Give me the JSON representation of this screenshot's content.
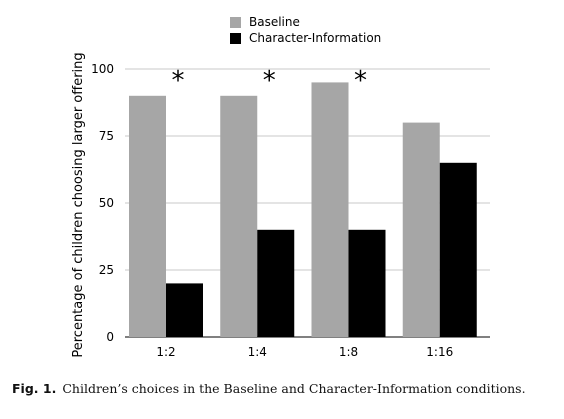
{
  "chart_data": {
    "type": "bar",
    "categories": [
      "1:2",
      "1:4",
      "1:8",
      "1:16"
    ],
    "series": [
      {
        "name": "Baseline",
        "values": [
          90,
          90,
          95,
          80
        ],
        "color": "#a6a6a6"
      },
      {
        "name": "Character-Information",
        "values": [
          20,
          40,
          40,
          65
        ],
        "color": "#000000"
      }
    ],
    "significance_marker": "*",
    "significant_categories": [
      "1:2",
      "1:4",
      "1:8"
    ],
    "ylabel": "Percentage of children choosing larger offering",
    "xlabel": "",
    "ylim": [
      0,
      100
    ],
    "yticks": [
      0,
      25,
      50,
      75,
      100
    ],
    "grid": true,
    "legend_position": "top-center"
  },
  "caption": {
    "label": "Fig. 1.",
    "text": "Children’s choices in the Baseline and Character-Information conditions."
  }
}
